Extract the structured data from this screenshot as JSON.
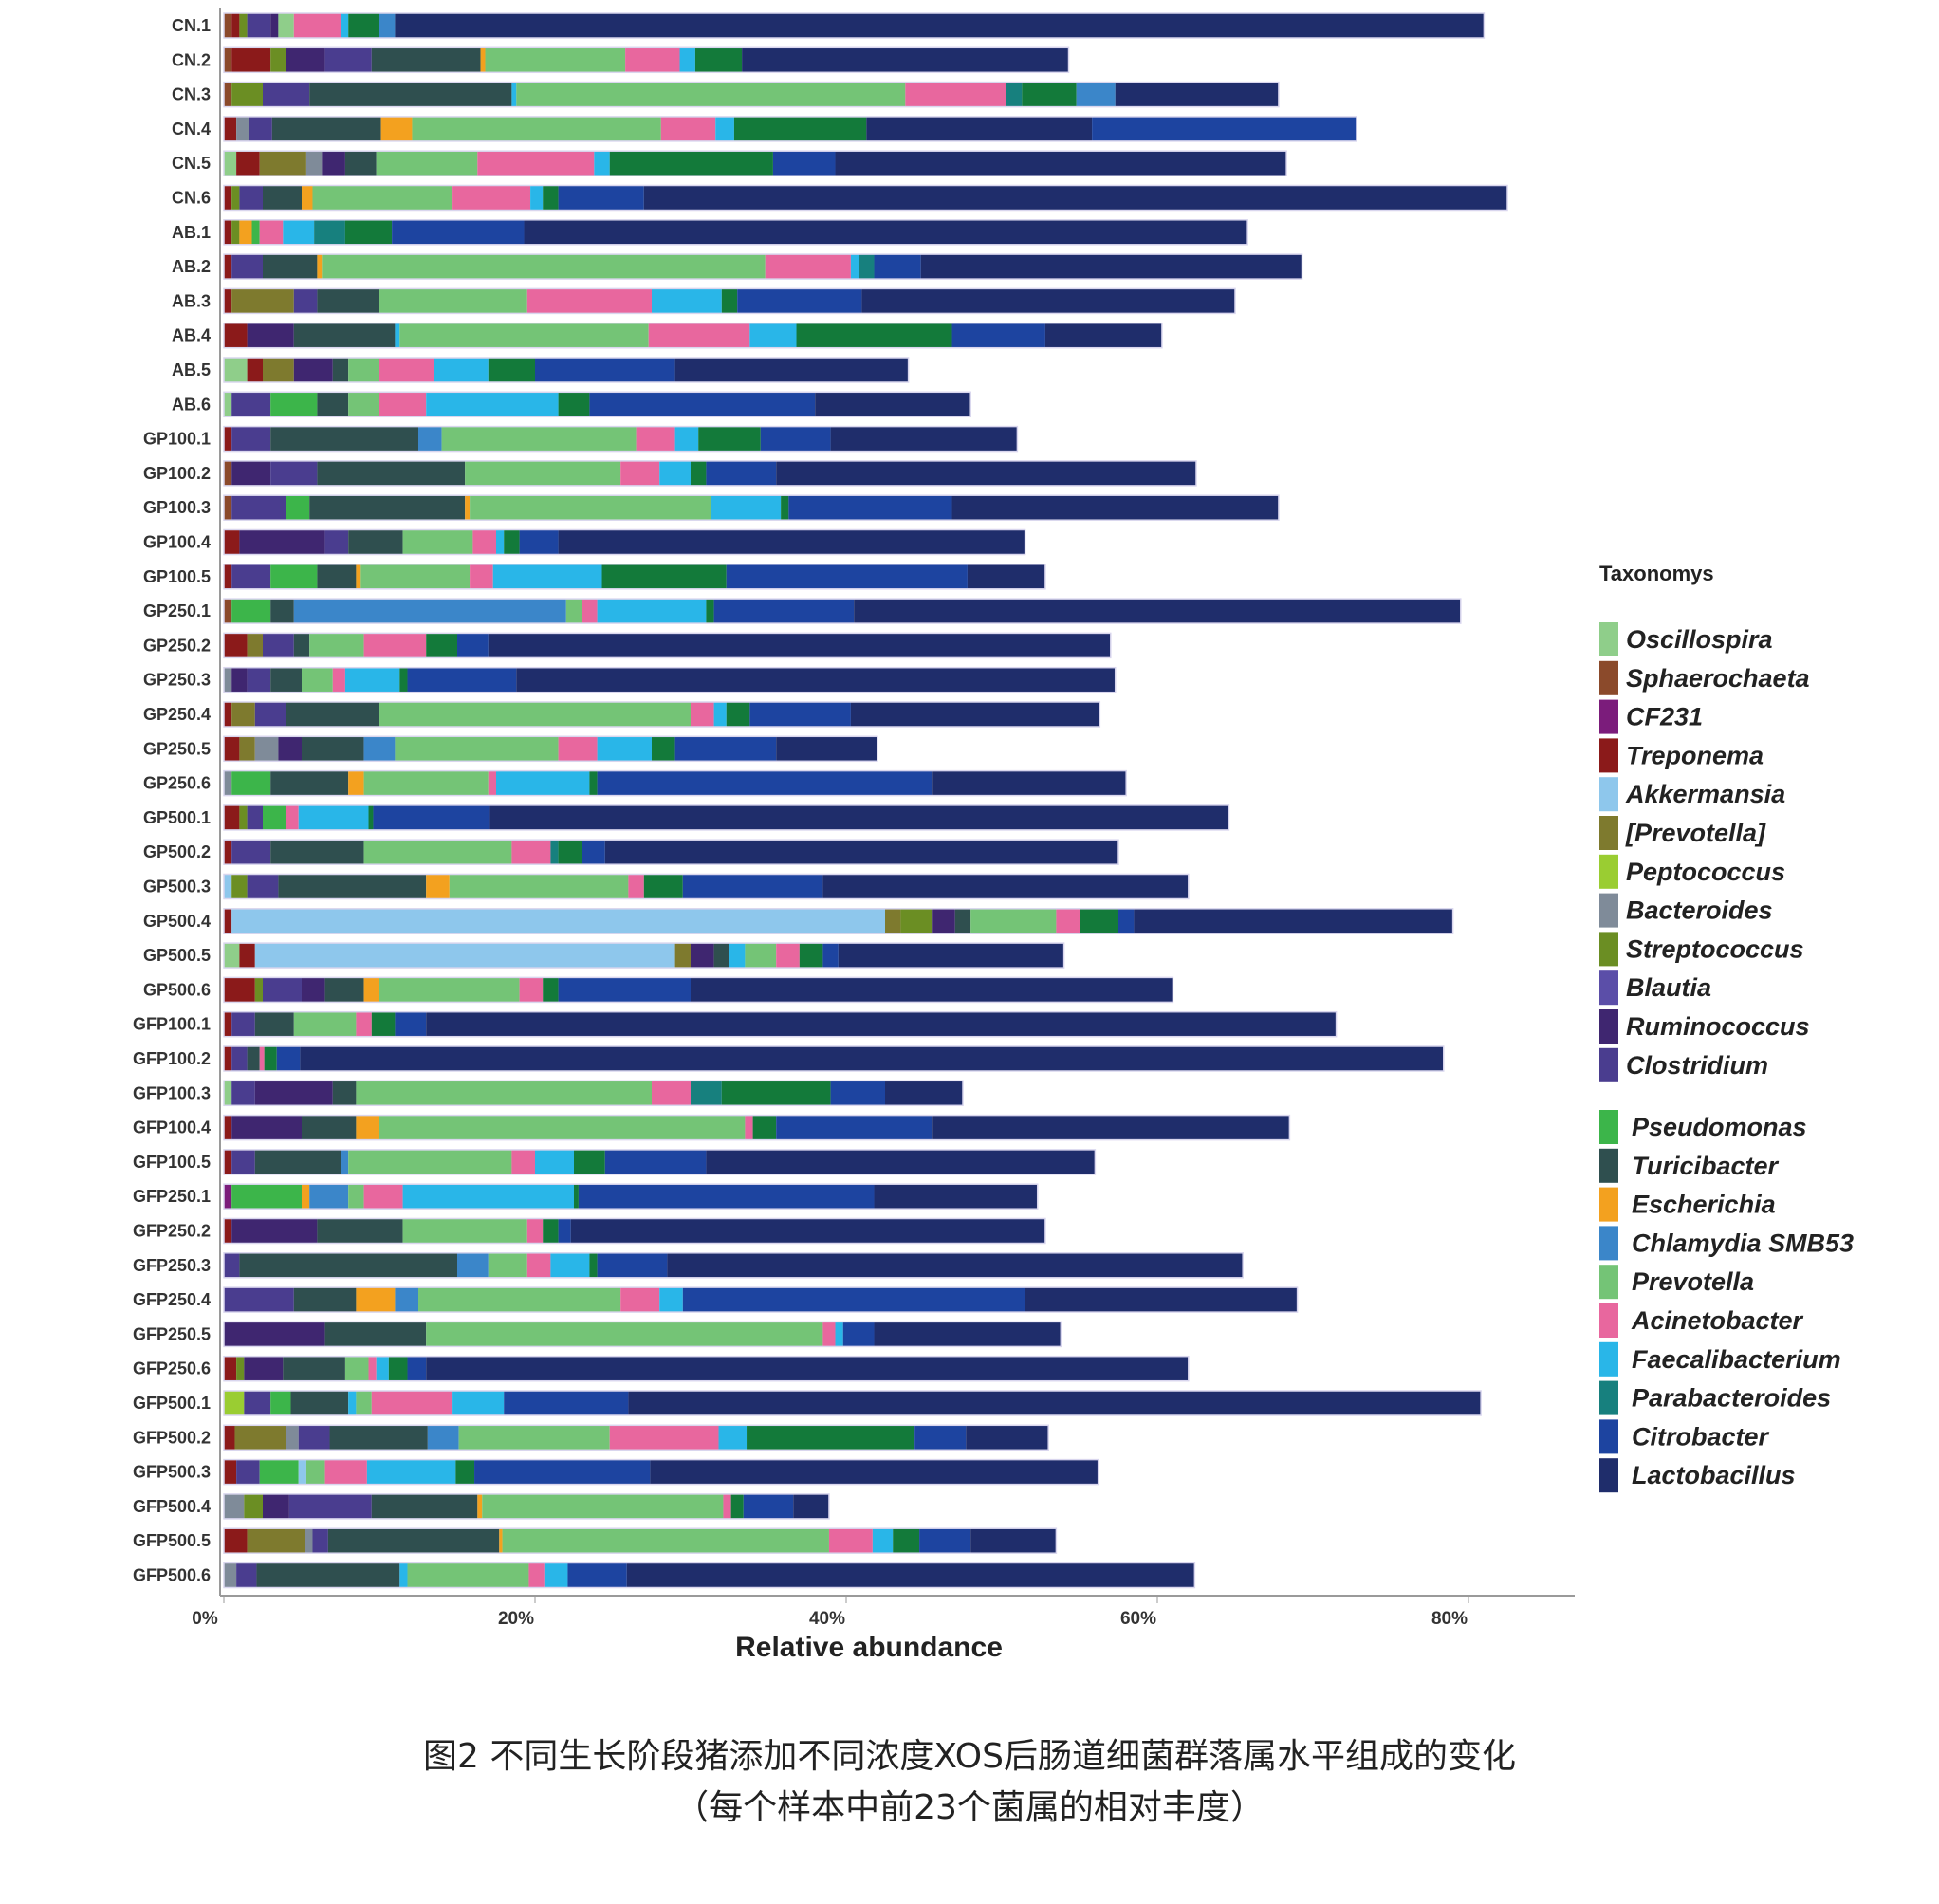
{
  "chart_data": {
    "type": "bar",
    "orientation": "horizontal",
    "stacked": true,
    "xlabel": "Relative abundance",
    "ylabel": "",
    "xlim": [
      0,
      88
    ],
    "xticks": [
      "0%",
      "20%",
      "40%",
      "60%",
      "80%"
    ],
    "legend_title": "Taxonomys",
    "legend_position": "right",
    "grid": false,
    "categories": [
      "CN.1",
      "CN.2",
      "CN.3",
      "CN.4",
      "CN.5",
      "CN.6",
      "AB.1",
      "AB.2",
      "AB.3",
      "AB.4",
      "AB.5",
      "AB.6",
      "GP100.1",
      "GP100.2",
      "GP100.3",
      "GP100.4",
      "GP100.5",
      "GP250.1",
      "GP250.2",
      "GP250.3",
      "GP250.4",
      "GP250.5",
      "GP250.6",
      "GP500.1",
      "GP500.2",
      "GP500.3",
      "GP500.4",
      "GP500.5",
      "GP500.6",
      "GFP100.1",
      "GFP100.2",
      "GFP100.3",
      "GFP100.4",
      "GFP100.5",
      "GFP250.1",
      "GFP250.2",
      "GFP250.3",
      "GFP250.4",
      "GFP250.5",
      "GFP250.6",
      "GFP500.1",
      "GFP500.2",
      "GFP500.3",
      "GFP500.4",
      "GFP500.5",
      "GFP500.6"
    ],
    "series_order": [
      "Oscillospira",
      "Sphaerochaeta",
      "CF231",
      "Treponema",
      "Akkermansia",
      "[Prevotella]",
      "Peptococcus",
      "Bacteroides",
      "Streptococcus",
      "Blautia",
      "Ruminococcus",
      "Clostridium",
      "Pseudomonas",
      "Turicibacter",
      "Escherichia",
      "Chlamydia SMB53",
      "Prevotella",
      "Acinetobacter",
      "Faecalibacterium",
      "Parabacteroides",
      "Citrobacter",
      "Lactobacillus"
    ],
    "legend_groups": [
      [
        "Oscillospira",
        "Sphaerochaeta",
        "CF231",
        "Treponema",
        "Akkermansia",
        "[Prevotella]",
        "Peptococcus",
        "Bacteroides",
        "Streptococcus",
        "Blautia",
        "Ruminococcus",
        "Clostridium"
      ],
      [
        "Pseudomonas",
        "Turicibacter",
        "Escherichia",
        "Chlamydia SMB53",
        "Prevotella",
        "Acinetobacter",
        "Faecalibacterium",
        "Parabacteroides",
        "Citrobacter",
        "Lactobacillus"
      ]
    ],
    "colors": {
      "Oscillospira": "#8fce8a",
      "Sphaerochaeta": "#8b4a2b",
      "CF231": "#7b1c7b",
      "Treponema": "#8b1a1a",
      "Akkermansia": "#8ec7ec",
      "[Prevotella]": "#7e7a2e",
      "Peptococcus": "#9acd32",
      "Bacteroides": "#7f8b99",
      "Streptococcus": "#6b8e23",
      "Blautia": "#5b4ea8",
      "Ruminococcus": "#3f2670",
      "Clostridium": "#4a3d8f",
      "Pseudomonas": "#3cb54a",
      "Turicibacter": "#2f4f4f",
      "Escherichia": "#f3a11f",
      "Chlamydia SMB53": "#3b86c9",
      "Prevotella": "#74c476",
      "Acinetobacter": "#e8679e",
      "Faecalibacterium": "#29b6e8",
      "Parabacteroides": "#17807e",
      "Citrobacter": "#137a3a",
      "Lactobacillus": "#1f2d6b"
    },
    "data": {
      "CN.1": {
        "Sphaerochaeta": 0.5,
        "Treponema": 0.5,
        "Streptococcus": 0.5,
        "Clostridium": 1.5,
        "Ruminococcus": 0.5,
        "Oscillospira": 1.0,
        "Acinetobacter": 3.0,
        "Faecalibacterium": 0.5,
        "Citrobacter": 2.0,
        "Chlamydia SMB53": 1.0,
        "Lactobacillus": 70.0
      },
      "CN.2": {
        "Sphaerochaeta": 0.5,
        "Treponema": 2.5,
        "Streptococcus": 1.0,
        "Ruminococcus": 2.5,
        "Clostridium": 3.0,
        "Turicibacter": 7.0,
        "Escherichia": 0.3,
        "Prevotella": 9.0,
        "Acinetobacter": 3.5,
        "Faecalibacterium": 1.0,
        "Citrobacter": 3.0,
        "Lactobacillus": 21.0
      },
      "CN.3": {
        "Sphaerochaeta": 0.5,
        "Streptococcus": 2.0,
        "Clostridium": 3.0,
        "Turicibacter": 13.0,
        "Faecalibacterium": 0.3,
        "Prevotella": 25.0,
        "Acinetobacter": 6.5,
        "Faecalibacterium2": 0.0,
        "Parabacteroides": 1.0,
        "Citrobacter": 3.5,
        "Chlamydia SMB53": 2.5,
        "Lactobacillus": 10.5
      },
      "CN.4": {
        "Treponema": 0.8,
        "Bacteroides": 0.8,
        "Clostridium": 1.5,
        "Turicibacter": 7.0,
        "Escherichia": 2.0,
        "Prevotella": 16.0,
        "Acinetobacter": 3.5,
        "Faecalibacterium": 1.2,
        "Citrobacter": 8.5,
        "Citrobacter2": 0.0,
        "Chlamydia SMB53": 0.0,
        "Lactobacillus": 14.5,
        "Citrobacter_lac": 17.0
      },
      "CN.5": {
        "Oscillospira": 0.8,
        "Treponema": 1.5,
        "[Prevotella]": 3.0,
        "Bacteroides": 1.0,
        "Ruminococcus": 1.5,
        "Turicibacter": 2.0,
        "Prevotella": 6.5,
        "Acinetobacter": 7.5,
        "Faecalibacterium": 1.0,
        "Citrobacter": 10.5,
        "Chlamydia SMB53": 0.0,
        "Citrobacter_lac": 4.0,
        "Lactobacillus": 29.0
      },
      "CN.6": {
        "Treponema": 0.5,
        "Streptococcus": 0.5,
        "Clostridium": 1.5,
        "Turicibacter": 2.5,
        "Escherichia": 0.7,
        "Prevotella": 9.0,
        "Acinetobacter": 5.0,
        "Faecalibacterium": 0.8,
        "Citrobacter": 1.0,
        "Citrobacter_lac": 5.5,
        "Lactobacillus": 55.5
      },
      "AB.1": {
        "Treponema": 0.5,
        "Streptococcus": 0.5,
        "Escherichia": 0.8,
        "Pseudomonas": 0.5,
        "Acinetobacter": 1.5,
        "Faecalibacterium": 2.0,
        "Parabacteroides": 2.0,
        "Citrobacter": 3.0,
        "Citrobacter_lac": 8.5,
        "Lactobacillus": 46.5
      },
      "AB.2": {
        "Treponema": 0.5,
        "Clostridium": 2.0,
        "Turicibacter": 3.5,
        "Escherichia": 0.3,
        "Prevotella": 28.5,
        "Acinetobacter": 5.5,
        "Faecalibacterium": 0.5,
        "Parabacteroides": 1.0,
        "Citrobacter_lac": 3.0,
        "Lactobacillus": 24.5
      },
      "AB.3": {
        "Treponema": 0.5,
        "[Prevotella]": 4.0,
        "Clostridium": 1.5,
        "Turicibacter": 4.0,
        "Prevotella": 9.5,
        "Acinetobacter": 8.0,
        "Faecalibacterium": 4.5,
        "Citrobacter": 1.0,
        "Citrobacter_lac": 8.0,
        "Lactobacillus": 24.0
      },
      "AB.4": {
        "Treponema": 1.5,
        "Ruminococcus": 3.0,
        "Turicibacter": 6.5,
        "Faecalibacterium": 0.3,
        "Prevotella": 16.0,
        "Acinetobacter": 6.5,
        "Faecalibacterium2": 3.0,
        "Citrobacter": 10.0,
        "Citrobacter_lac": 6.0,
        "Lactobacillus": 7.5
      },
      "AB.5": {
        "Oscillospira": 1.5,
        "Treponema": 1.0,
        "[Prevotella]": 2.0,
        "Ruminococcus": 2.5,
        "Turicibacter": 1.0,
        "Prevotella": 2.0,
        "Acinetobacter": 3.5,
        "Faecalibacterium": 3.5,
        "Citrobacter": 3.0,
        "Citrobacter_lac": 9.0,
        "Lactobacillus": 15.0
      },
      "AB.6": {
        "Oscillospira": 0.5,
        "Clostridium": 2.5,
        "Pseudomonas": 3.0,
        "Turicibacter": 2.0,
        "Prevotella": 2.0,
        "Acinetobacter": 3.0,
        "Faecalibacterium": 8.5,
        "Citrobacter": 2.0,
        "Citrobacter_lac": 14.5,
        "Lactobacillus": 10.0
      },
      "GP100.1": {
        "Treponema": 0.5,
        "Clostridium": 2.5,
        "Turicibacter": 9.5,
        "Chlamydia SMB53": 1.5,
        "Prevotella": 12.5,
        "Acinetobacter": 2.5,
        "Faecalibacterium": 1.5,
        "Citrobacter": 4.0,
        "Citrobacter_lac": 4.5,
        "Lactobacillus": 12.0
      },
      "GP100.2": {
        "Sphaerochaeta": 0.5,
        "Ruminococcus": 2.5,
        "Clostridium": 3.0,
        "Turicibacter": 9.5,
        "Prevotella": 10.0,
        "Acinetobacter": 2.5,
        "Faecalibacterium": 2.0,
        "Citrobacter": 1.0,
        "Citrobacter_lac": 4.5,
        "Lactobacillus": 27.0
      },
      "GP100.3": {
        "Sphaerochaeta": 0.5,
        "Clostridium": 3.5,
        "Pseudomonas": 1.5,
        "Turicibacter": 10.0,
        "Escherichia": 0.3,
        "Prevotella": 15.5,
        "Faecalibacterium": 4.5,
        "Citrobacter": 0.5,
        "Citrobacter_lac": 10.5,
        "Lactobacillus": 21.0
      },
      "GP100.4": {
        "Treponema": 1.0,
        "Ruminococcus": 5.5,
        "Clostridium": 1.5,
        "Turicibacter": 3.5,
        "Prevotella": 4.5,
        "Acinetobacter": 1.5,
        "Faecalibacterium": 0.5,
        "Citrobacter": 1.0,
        "Citrobacter_lac": 2.5,
        "Lactobacillus": 30.0
      },
      "GP100.5": {
        "Treponema": 0.5,
        "Clostridium": 2.5,
        "Pseudomonas": 3.0,
        "Turicibacter": 2.5,
        "Escherichia": 0.3,
        "Prevotella": 7.0,
        "Acinetobacter": 1.5,
        "Faecalibacterium": 7.0,
        "Citrobacter": 8.0,
        "Citrobacter_lac": 15.5,
        "Lactobacillus": 5.0
      },
      "GP250.1": {
        "Sphaerochaeta": 0.5,
        "Pseudomonas": 2.5,
        "Turicibacter": 1.5,
        "Chlamydia SMB53": 17.5,
        "Prevotella": 1.0,
        "Acinetobacter": 1.0,
        "Faecalibacterium": 7.0,
        "Citrobacter": 0.5,
        "Citrobacter_lac": 9.0,
        "Lactobacillus": 39.0
      },
      "GP250.2": {
        "Treponema": 1.5,
        "[Prevotella]": 1.0,
        "Clostridium": 2.0,
        "Turicibacter": 1.0,
        "Prevotella": 3.5,
        "Acinetobacter": 4.0,
        "Citrobacter": 2.0,
        "Citrobacter_lac": 2.0,
        "Lactobacillus": 40.0
      },
      "GP250.3": {
        "Bacteroides": 0.5,
        "Ruminococcus": 1.0,
        "Clostridium": 1.5,
        "Turicibacter": 2.0,
        "Prevotella": 2.0,
        "Acinetobacter": 0.8,
        "Faecalibacterium": 3.5,
        "Citrobacter": 0.5,
        "Citrobacter_lac": 7.0,
        "Lactobacillus": 38.5
      },
      "GP250.4": {
        "Treponema": 0.5,
        "[Prevotella]": 1.5,
        "Clostridium": 2.0,
        "Turicibacter": 6.0,
        "Prevotella": 20.0,
        "Acinetobacter": 1.5,
        "Faecalibacterium": 0.8,
        "Citrobacter": 1.5,
        "Citrobacter_lac": 6.5,
        "Lactobacillus": 16.0
      },
      "GP250.5": {
        "Treponema": 1.0,
        "[Prevotella]": 1.0,
        "Bacteroides": 1.5,
        "Ruminococcus": 1.5,
        "Turicibacter": 4.0,
        "Chlamydia SMB53": 2.0,
        "Prevotella": 10.5,
        "Acinetobacter": 2.5,
        "Faecalibacterium": 3.5,
        "Citrobacter": 1.5,
        "Citrobacter_lac": 6.5,
        "Lactobacillus": 6.5
      },
      "GP250.6": {
        "Bacteroides": 0.5,
        "Pseudomonas": 2.5,
        "Turicibacter": 5.0,
        "Escherichia": 1.0,
        "Prevotella": 8.0,
        "Acinetobacter": 0.5,
        "Faecalibacterium": 6.0,
        "Citrobacter": 0.5,
        "Citrobacter_lac": 21.5,
        "Lactobacillus": 12.5
      },
      "GP500.1": {
        "Treponema": 1.0,
        "Streptococcus": 0.5,
        "Clostridium": 1.0,
        "Pseudomonas": 1.5,
        "Acinetobacter": 0.8,
        "Faecalibacterium": 4.5,
        "Citrobacter": 0.3,
        "Citrobacter_lac": 7.5,
        "Lactobacillus": 47.5
      },
      "GP500.2": {
        "Treponema": 0.5,
        "Clostridium": 2.5,
        "Turicibacter": 6.0,
        "Prevotella": 9.5,
        "Acinetobacter": 2.5,
        "Parabacteroides": 0.5,
        "Citrobacter": 1.5,
        "Citrobacter_lac": 1.5,
        "Lactobacillus": 33.0
      },
      "GP500.3": {
        "Akkermansia": 0.5,
        "Streptococcus": 1.0,
        "Clostridium": 2.0,
        "Turicibacter": 9.5,
        "Escherichia": 1.5,
        "Prevotella": 11.5,
        "Acinetobacter": 1.0,
        "Citrobacter": 2.5,
        "Citrobacter_lac": 9.0,
        "Lactobacillus": 23.5
      },
      "GP500.4": {
        "Treponema": 0.5,
        "Akkermansia": 42.0,
        "[Prevotella]": 1.0,
        "Streptococcus": 2.0,
        "Ruminococcus": 1.5,
        "Turicibacter": 1.0,
        "Prevotella": 5.5,
        "Acinetobacter": 1.5,
        "Citrobacter": 2.5,
        "Citrobacter_lac": 1.0,
        "Lactobacillus": 20.5
      },
      "GP500.5": {
        "Oscillospira": 1.0,
        "Treponema": 1.0,
        "Akkermansia": 27.0,
        "[Prevotella]": 1.0,
        "Ruminococcus": 1.5,
        "Turicibacter": 1.0,
        "Faecalibacterium": 1.0,
        "Prevotella": 2.0,
        "Acinetobacter": 1.5,
        "Citrobacter": 1.5,
        "Citrobacter_lac": 1.0,
        "Lactobacillus": 14.5
      },
      "GP500.6": {
        "Treponema": 2.0,
        "Streptococcus": 0.5,
        "Clostridium": 2.5,
        "Ruminococcus": 1.5,
        "Turicibacter": 2.5,
        "Escherichia": 1.0,
        "Prevotella": 9.0,
        "Acinetobacter": 1.5,
        "Citrobacter": 1.0,
        "Citrobacter_lac": 8.5,
        "Lactobacillus": 31.0
      },
      "GFP100.1": {
        "Treponema": 0.5,
        "Clostridium": 1.5,
        "Turicibacter": 2.5,
        "Prevotella": 4.0,
        "Acinetobacter": 1.0,
        "Citrobacter": 1.5,
        "Citrobacter_lac": 2.0,
        "Lactobacillus": 58.5
      },
      "GFP100.2": {
        "Treponema": 0.5,
        "Clostridium": 1.0,
        "Turicibacter": 0.8,
        "Acinetobacter": 0.3,
        "Citrobacter": 0.8,
        "Citrobacter_lac": 1.5,
        "Lactobacillus": 73.5
      },
      "GFP100.3": {
        "Oscillospira": 0.5,
        "Clostridium": 1.5,
        "Ruminococcus": 5.0,
        "Turicibacter": 1.5,
        "Prevotella": 19.0,
        "Acinetobacter": 2.5,
        "Parabacteroides": 2.0,
        "Citrobacter": 7.0,
        "Citrobacter_lac": 3.5,
        "Lactobacillus": 5.0
      },
      "GFP100.4": {
        "Treponema": 0.5,
        "Ruminococcus": 4.5,
        "Turicibacter": 3.5,
        "Escherichia": 1.5,
        "Prevotella": 23.5,
        "Acinetobacter": 0.5,
        "Citrobacter": 1.5,
        "Citrobacter_lac": 10.0,
        "Lactobacillus": 23.0
      },
      "GFP100.5": {
        "Treponema": 0.5,
        "Clostridium": 1.5,
        "Turicibacter": 5.5,
        "Chlamydia SMB53": 0.5,
        "Prevotella": 10.5,
        "Acinetobacter": 1.5,
        "Faecalibacterium": 2.5,
        "Citrobacter": 2.0,
        "Citrobacter_lac": 6.5,
        "Lactobacillus": 25.0
      },
      "GFP250.1": {
        "CF231": 0.5,
        "Pseudomonas": 4.5,
        "Escherichia": 0.5,
        "Chlamydia SMB53": 2.5,
        "Prevotella": 1.0,
        "Acinetobacter": 2.5,
        "Faecalibacterium": 11.0,
        "Citrobacter": 0.3,
        "Citrobacter_lac": 19.0,
        "Lactobacillus": 10.5
      },
      "GFP250.2": {
        "Treponema": 0.5,
        "Ruminococcus": 5.5,
        "Turicibacter": 5.5,
        "Prevotella": 8.0,
        "Acinetobacter": 1.0,
        "Citrobacter": 1.0,
        "Citrobacter_lac": 0.8,
        "Lactobacillus": 30.5
      },
      "GFP250.3": {
        "Clostridium": 1.0,
        "Turicibacter": 14.0,
        "Chlamydia SMB53": 2.0,
        "Prevotella": 2.5,
        "Acinetobacter": 1.5,
        "Faecalibacterium": 2.5,
        "Citrobacter": 0.5,
        "Citrobacter_lac": 4.5,
        "Lactobacillus": 37.0
      },
      "GFP250.4": {
        "Clostridium": 4.5,
        "Turicibacter": 4.0,
        "Escherichia": 2.5,
        "Chlamydia SMB53": 1.5,
        "Prevotella": 13.0,
        "Acinetobacter": 2.5,
        "Faecalibacterium": 1.5,
        "Citrobacter_lac": 22.0,
        "Lactobacillus": 17.5
      },
      "GFP250.5": {
        "Ruminococcus": 6.5,
        "Turicibacter": 6.5,
        "Prevotella": 25.5,
        "Acinetobacter": 0.8,
        "Faecalibacterium": 0.5,
        "Citrobacter_lac": 2.0,
        "Lactobacillus": 12.0
      },
      "GFP250.6": {
        "Treponema": 0.8,
        "Streptococcus": 0.5,
        "Ruminococcus": 2.5,
        "Turicibacter": 4.0,
        "Prevotella": 1.5,
        "Acinetobacter": 0.5,
        "Faecalibacterium": 0.8,
        "Citrobacter": 1.2,
        "Citrobacter_lac": 1.2,
        "Lactobacillus": 49.0
      },
      "GFP500.1": {
        "Peptococcus": 1.3,
        "Clostridium": 1.7,
        "Pseudomonas": 1.3,
        "Turicibacter": 3.7,
        "Faecalibacterium": 0.5,
        "Prevotella": 1.0,
        "Acinetobacter": 5.2,
        "Faecalibacterium2": 3.3,
        "Citrobacter_lac": 8.0,
        "Lactobacillus": 54.8
      },
      "GFP500.2": {
        "Treponema": 0.7,
        "[Prevotella]": 3.3,
        "Bacteroides": 0.8,
        "Clostridium": 2.0,
        "Turicibacter": 6.3,
        "Chlamydia SMB53": 2.0,
        "Prevotella": 9.7,
        "Acinetobacter": 7.0,
        "Faecalibacterium": 1.8,
        "Citrobacter": 10.8,
        "Citrobacter_lac": 3.3,
        "Lactobacillus": 5.3
      },
      "GFP500.3": {
        "Treponema": 0.8,
        "Clostridium": 1.5,
        "Pseudomonas": 2.5,
        "Akkermansia": 0.5,
        "Prevotella": 1.2,
        "Acinetobacter": 2.7,
        "Faecalibacterium": 5.7,
        "Citrobacter": 1.2,
        "Citrobacter_lac": 11.3,
        "Lactobacillus": 28.8
      },
      "GFP500.4": {
        "Bacteroides": 1.3,
        "Streptococcus": 1.2,
        "Ruminococcus": 1.7,
        "Clostridium": 5.3,
        "Turicibacter": 6.8,
        "Escherichia": 0.3,
        "Prevotella": 15.5,
        "Acinetobacter": 0.5,
        "Citrobacter": 0.8,
        "Citrobacter_lac": 3.2,
        "Lactobacillus": 2.3
      },
      "GFP500.5": {
        "Treponema": 1.5,
        "[Prevotella]": 3.7,
        "Bacteroides": 0.5,
        "Clostridium": 1.0,
        "Turicibacter": 11.0,
        "Escherichia": 0.2,
        "Prevotella": 21.0,
        "Acinetobacter": 2.8,
        "Faecalibacterium": 1.3,
        "Citrobacter": 1.7,
        "Citrobacter_lac": 3.3,
        "Lactobacillus": 5.5
      },
      "GFP500.6": {
        "Bacteroides": 0.8,
        "Clostridium": 1.3,
        "Turicibacter": 9.2,
        "Faecalibacterium": 0.5,
        "Prevotella": 7.8,
        "Acinetobacter": 1.0,
        "Faecalibacterium2": 1.5,
        "Citrobacter_lac": 3.8,
        "Lactobacillus": 36.5
      }
    }
  },
  "caption": {
    "line1": "图2 不同生长阶段猪添加不同浓度XOS后肠道细菌群落属水平组成的变化",
    "line2": "（每个样本中前23个菌属的相对丰度）"
  }
}
